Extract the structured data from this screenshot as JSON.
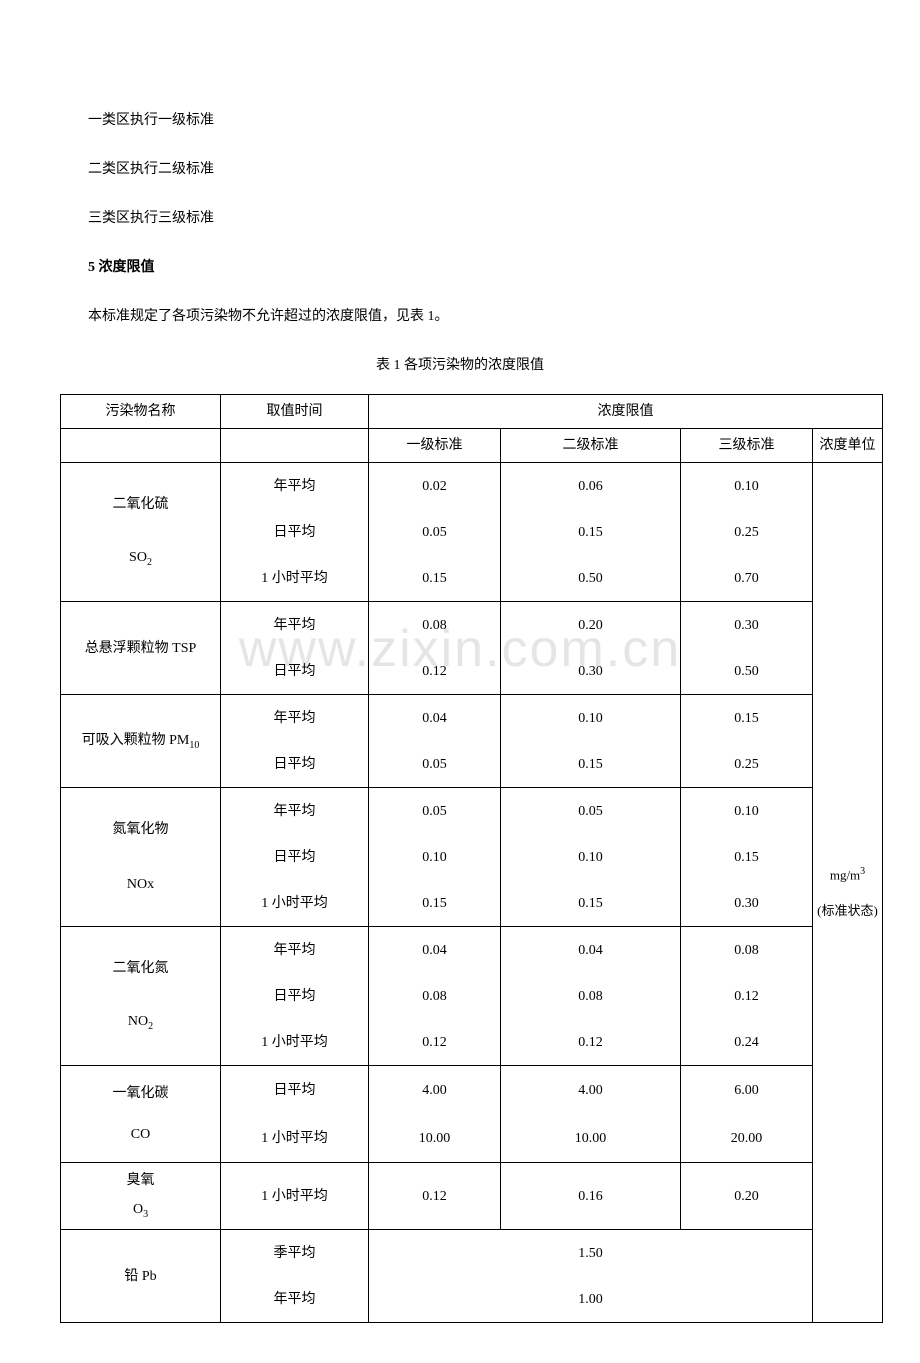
{
  "watermark": "www.zixin.com.cn",
  "paragraphs": {
    "p1": "一类区执行一级标准",
    "p2": "二类区执行二级标准",
    "p3": "三类区执行三级标准",
    "heading": "5 浓度限值",
    "p4": "本标准规定了各项污染物不允许超过的浓度限值，见表 1。",
    "caption": "表 1 各项污染物的浓度限值"
  },
  "table": {
    "headers": {
      "pollutant": "污染物名称",
      "period": "取值时间",
      "limit": "浓度限值",
      "lv1": "一级标准",
      "lv2": "二级标准",
      "lv3": "三级标准",
      "unit": "浓度单位"
    },
    "unit_text1": "mg/m",
    "unit_sup": "3",
    "unit_text2": "(标准状态)",
    "rows": [
      {
        "name_l1": "二氧化硫",
        "name_l2": "SO",
        "name_sub": "2",
        "periods": [
          "年平均",
          "日平均",
          "1 小时平均"
        ],
        "v1": [
          "0.02",
          "0.05",
          "0.15"
        ],
        "v2": [
          "0.06",
          "0.15",
          "0.50"
        ],
        "v3": [
          "0.10",
          "0.25",
          "0.70"
        ]
      },
      {
        "name_l1": "总悬浮颗粒物 TSP",
        "name_l2": "",
        "name_sub": "",
        "periods": [
          "年平均",
          "日平均"
        ],
        "v1": [
          "0.08",
          "0.12"
        ],
        "v2": [
          "0.20",
          "0.30"
        ],
        "v3": [
          "0.30",
          "0.50"
        ]
      },
      {
        "name_l1": "可吸入颗粒物 PM",
        "name_sub1": "10",
        "name_l2": "",
        "name_sub": "",
        "periods": [
          "年平均",
          "日平均"
        ],
        "v1": [
          "0.04",
          "0.05"
        ],
        "v2": [
          "0.10",
          "0.15"
        ],
        "v3": [
          "0.15",
          "0.25"
        ]
      },
      {
        "name_l1": "氮氧化物",
        "name_l2": "NOx",
        "name_sub": "",
        "periods": [
          "年平均",
          "日平均",
          "1 小时平均"
        ],
        "v1": [
          "0.05",
          "0.10",
          "0.15"
        ],
        "v2": [
          "0.05",
          "0.10",
          "0.15"
        ],
        "v3": [
          "0.10",
          "0.15",
          "0.30"
        ]
      },
      {
        "name_l1": "二氧化氮",
        "name_l2": "NO",
        "name_sub": "2",
        "periods": [
          "年平均",
          "日平均",
          "1 小时平均"
        ],
        "v1": [
          "0.04",
          "0.08",
          "0.12"
        ],
        "v2": [
          "0.04",
          "0.08",
          "0.12"
        ],
        "v3": [
          "0.08",
          "0.12",
          "0.24"
        ]
      },
      {
        "name_l1": "一氧化碳",
        "name_l2": "CO",
        "name_sub": "",
        "periods": [
          "日平均",
          "1 小时平均"
        ],
        "v1": [
          "4.00",
          "10.00"
        ],
        "v2": [
          "4.00",
          "10.00"
        ],
        "v3": [
          "6.00",
          "20.00"
        ]
      },
      {
        "name_l1": "臭氧",
        "name_l2": "O",
        "name_sub": "3",
        "periods": [
          "1 小时平均"
        ],
        "v1": [
          "0.12"
        ],
        "v2": [
          "0.16"
        ],
        "v3": [
          "0.20"
        ]
      },
      {
        "name_l1": "铅 Pb",
        "name_l2": "",
        "name_sub": "",
        "periods": [
          "季平均",
          "年平均"
        ],
        "merged": [
          "1.50",
          "1.00"
        ]
      }
    ]
  }
}
